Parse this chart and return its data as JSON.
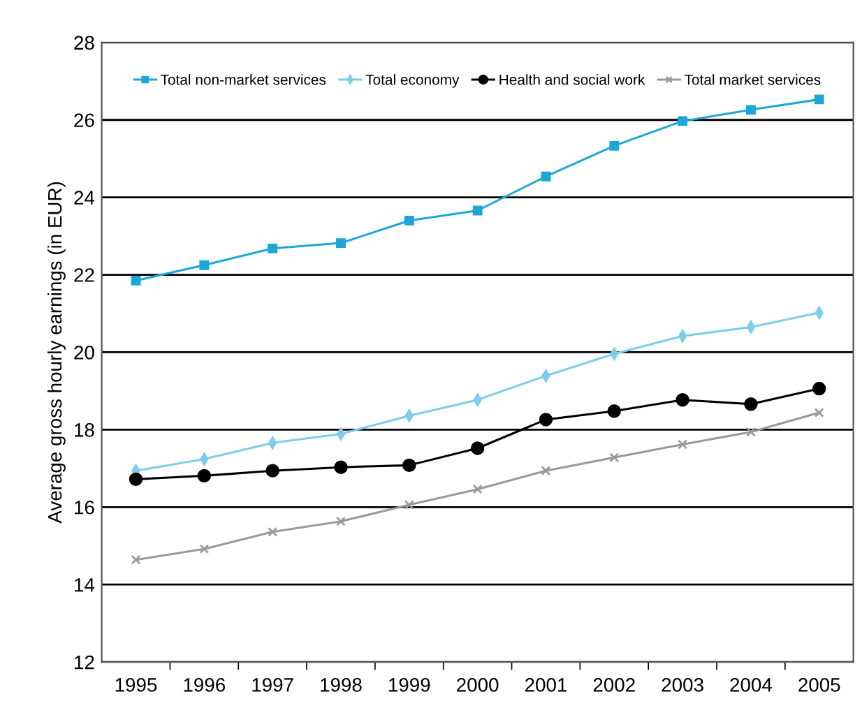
{
  "chart_data": {
    "type": "line",
    "ylabel": "Average gross hourly earnings (in EUR)",
    "categories": [
      "1995",
      "1996",
      "1997",
      "1998",
      "1999",
      "2000",
      "2001",
      "2002",
      "2003",
      "2004",
      "2005"
    ],
    "series": [
      {
        "name": "Total non-market services",
        "color": "#1ea6d6",
        "marker": "square",
        "values": [
          21.85,
          22.25,
          22.68,
          22.82,
          23.4,
          23.66,
          24.54,
          25.33,
          25.97,
          26.26,
          26.53
        ]
      },
      {
        "name": "Total economy",
        "color": "#7fcdea",
        "marker": "diamond",
        "values": [
          16.94,
          17.24,
          17.66,
          17.89,
          18.36,
          18.77,
          19.39,
          19.96,
          20.42,
          20.65,
          21.02
        ]
      },
      {
        "name": "Health and social work",
        "color": "#000000",
        "marker": "circle",
        "values": [
          16.72,
          16.81,
          16.94,
          17.03,
          17.08,
          17.52,
          18.26,
          18.48,
          18.77,
          18.66,
          19.06
        ]
      },
      {
        "name": "Total market services",
        "color": "#999999",
        "marker": "cross",
        "values": [
          14.64,
          14.92,
          15.36,
          15.63,
          16.06,
          16.46,
          16.94,
          17.28,
          17.62,
          17.94,
          18.44
        ]
      }
    ],
    "ylim": [
      12,
      28
    ],
    "yticks": [
      12,
      14,
      16,
      18,
      20,
      22,
      24,
      26,
      28
    ],
    "grid": "y",
    "legend": "top"
  }
}
